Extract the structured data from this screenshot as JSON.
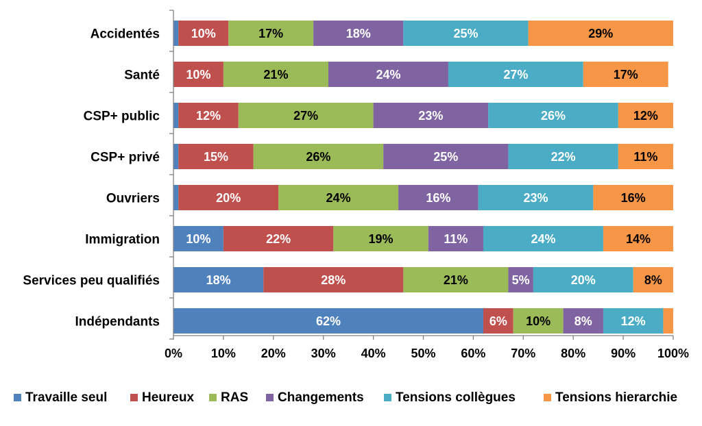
{
  "chart_data": {
    "type": "bar",
    "orientation": "horizontal",
    "stacked": "percent",
    "categories": [
      "Accidentés",
      "Santé",
      "CSP+ public",
      "CSP+ privé",
      "Ouvriers",
      "Immigration",
      "Services peu qualifiés",
      "Indépendants"
    ],
    "series": [
      {
        "name": "Travaille seul",
        "color": "#4F81BD",
        "values": [
          1,
          0,
          1,
          1,
          1,
          10,
          18,
          62
        ],
        "labels": [
          "",
          "",
          "",
          "",
          "",
          "10%",
          "18%",
          "62%"
        ],
        "label_color": "#ffffff"
      },
      {
        "name": "Heureux",
        "color": "#C0504D",
        "values": [
          10,
          10,
          12,
          15,
          20,
          22,
          28,
          6
        ],
        "labels": [
          "10%",
          "10%",
          "12%",
          "15%",
          "20%",
          "22%",
          "28%",
          "6%"
        ],
        "label_color": "#ffffff"
      },
      {
        "name": "RAS",
        "color": "#9BBB59",
        "values": [
          17,
          21,
          27,
          26,
          24,
          19,
          21,
          10
        ],
        "labels": [
          "17%",
          "21%",
          "27%",
          "26%",
          "24%",
          "19%",
          "21%",
          "10%"
        ],
        "label_color": "#000000"
      },
      {
        "name": "Changements",
        "color": "#8064A2",
        "values": [
          18,
          24,
          23,
          25,
          16,
          11,
          5,
          8
        ],
        "labels": [
          "18%",
          "24%",
          "23%",
          "25%",
          "16%",
          "11%",
          "5%",
          "8%"
        ],
        "label_color": "#ffffff"
      },
      {
        "name": "Tensions collègues",
        "color": "#4BACC6",
        "values": [
          25,
          27,
          26,
          22,
          23,
          24,
          20,
          12
        ],
        "labels": [
          "25%",
          "27%",
          "26%",
          "22%",
          "23%",
          "24%",
          "20%",
          "12%"
        ],
        "label_color": "#ffffff"
      },
      {
        "name": "Tensions hierarchie",
        "color": "#F79646",
        "values": [
          29,
          17,
          12,
          11,
          16,
          14,
          8,
          2
        ],
        "labels": [
          "29%",
          "17%",
          "12%",
          "11%",
          "16%",
          "14%",
          "8%",
          ""
        ],
        "label_color": "#000000"
      }
    ],
    "xlim": [
      0,
      100
    ],
    "x_ticks": [
      "0%",
      "10%",
      "20%",
      "30%",
      "40%",
      "50%",
      "60%",
      "70%",
      "80%",
      "90%",
      "100%"
    ],
    "grid": false,
    "legend_position": "bottom",
    "title": "",
    "xlabel": "",
    "ylabel": ""
  }
}
